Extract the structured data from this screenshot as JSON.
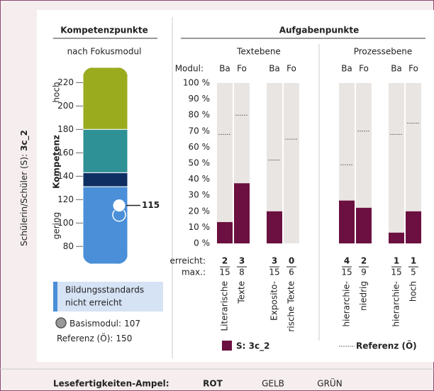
{
  "side_label": "Schülerin/Schüler (S):",
  "student": "3c_2",
  "competence": {
    "title": "Kompetenzpunkte",
    "subtitle": "nach Fokusmodul",
    "axis_label": "Kompetenz",
    "high": "hoch",
    "low": "gering",
    "ylim": [
      65,
      233
    ],
    "yticks": [
      80,
      100,
      120,
      140,
      160,
      180,
      200,
      220
    ],
    "bands": [
      {
        "from": 180,
        "to": 233,
        "color": "#9aab1e"
      },
      {
        "from": 143,
        "to": 180,
        "color": "#2e9196"
      },
      {
        "from": 131,
        "to": 143,
        "color": "#0f2f63"
      },
      {
        "from": 65,
        "to": 131,
        "color": "#4a8fd8"
      }
    ],
    "value": 115,
    "basis": 107,
    "legend_standards": [
      "Bildungsstandards",
      "nicht erreicht"
    ],
    "basis_label": "Basismodul:",
    "reference_label": "Referenz (Ö):",
    "reference": 150
  },
  "tasks": {
    "title": "Aufgabenpunkte",
    "modul_label": "Modul:",
    "modules": [
      "Ba",
      "Fo"
    ],
    "ylim": [
      0,
      100
    ],
    "yticks": [
      {
        "value": 0,
        "label": "0 %"
      },
      {
        "value": 10,
        "label": "10 %"
      },
      {
        "value": 20,
        "label": "20 %"
      },
      {
        "value": 30,
        "label": "30 %"
      },
      {
        "value": 40,
        "label": "40 %"
      },
      {
        "value": 50,
        "label": "50 %"
      },
      {
        "value": 60,
        "label": "60 %"
      },
      {
        "value": 70,
        "label": "70 %"
      },
      {
        "value": 80,
        "label": "80 %"
      },
      {
        "value": 90,
        "label": "90 %"
      },
      {
        "value": 100,
        "label": "100 %"
      }
    ],
    "reached_label": "erreicht:",
    "max_label": "max.:",
    "groups": [
      {
        "name": "Textebene",
        "categories": [
          {
            "label": [
              "Literarische",
              "Texte"
            ],
            "values": [
              13.3,
              37.5
            ],
            "reference": [
              68,
              80
            ],
            "reached": [
              2,
              3
            ],
            "max": [
              15,
              8
            ]
          },
          {
            "label": [
              "Exposito-",
              "rische Texte"
            ],
            "values": [
              20,
              0
            ],
            "reference": [
              52,
              65
            ],
            "reached": [
              3,
              0
            ],
            "max": [
              15,
              6
            ]
          }
        ]
      },
      {
        "name": "Prozessebene",
        "categories": [
          {
            "label": [
              "hierarchie-",
              "niedrig"
            ],
            "values": [
              26.7,
              22.2
            ],
            "reference": [
              49,
              70
            ],
            "reached": [
              4,
              2
            ],
            "max": [
              15,
              9
            ]
          },
          {
            "label": [
              "hierarchie-",
              "hoch"
            ],
            "values": [
              6.7,
              20
            ],
            "reference": [
              68,
              75
            ],
            "reached": [
              1,
              1
            ],
            "max": [
              15,
              5
            ]
          }
        ]
      }
    ],
    "bar_color": "#6b1040",
    "legend_student": "S: 3c_2",
    "legend_reference": "Referenz (Ö)"
  },
  "footer": {
    "label": "Lesefertigkeiten-Ampel:",
    "lights": [
      "ROT",
      "GELB",
      "GRÜN"
    ],
    "active": 0
  }
}
